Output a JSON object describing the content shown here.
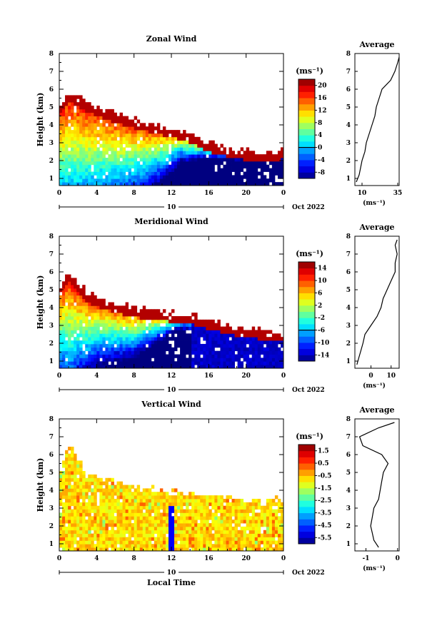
{
  "figure": {
    "xlabel": "Local Time",
    "x_ticks": [
      "0",
      "4",
      "8",
      "12",
      "16",
      "20",
      "0"
    ],
    "date_day": "10",
    "date_month": "Oct 2022",
    "y_ticks": [
      "1",
      "2",
      "3",
      "4",
      "5",
      "6",
      "7",
      "8"
    ],
    "ylabel": "Height (km)",
    "average_title": "Average",
    "unit_label": "(ms⁻¹)"
  },
  "chart_data": [
    {
      "type": "heatmap",
      "title": "Zonal Wind",
      "xlabel": "",
      "ylabel": "Height (km)",
      "xlim": [
        0,
        24
      ],
      "ylim": [
        0.6,
        8
      ],
      "colorbar": {
        "label": "(ms⁻¹)",
        "range": [
          -8,
          22
        ],
        "ticks": [
          "20",
          "16",
          "12",
          "8",
          "4",
          "0",
          "-4",
          "-8"
        ],
        "contour": 0
      },
      "top_height_km": [
        [
          0,
          5.0
        ],
        [
          1,
          5.8
        ],
        [
          3,
          5.2
        ],
        [
          6,
          4.6
        ],
        [
          9,
          4.2
        ],
        [
          12,
          3.8
        ],
        [
          14,
          3.5
        ],
        [
          16,
          3.0
        ],
        [
          19,
          2.6
        ],
        [
          22,
          2.4
        ],
        [
          24,
          2.6
        ]
      ],
      "core_height_km": [
        [
          0,
          1.7
        ],
        [
          4,
          1.9
        ],
        [
          8,
          2.0
        ],
        [
          11,
          2.4
        ],
        [
          13,
          2.8
        ],
        [
          16,
          2.6
        ],
        [
          20,
          2.5
        ],
        [
          24,
          2.5
        ]
      ],
      "profile": {
        "xlabel": "(ms⁻¹)",
        "x_ticks": [
          "10",
          "35"
        ],
        "xlim": [
          5,
          36
        ],
        "height_km": [
          0.8,
          1.2,
          1.6,
          2.0,
          2.5,
          3.0,
          3.5,
          4.0,
          4.5,
          5.0,
          5.5,
          6.0,
          6.5,
          7.0,
          7.5,
          7.8
        ],
        "values": [
          6,
          8,
          9,
          10,
          12,
          13,
          15,
          17,
          19,
          20,
          22,
          24,
          30,
          33,
          35,
          36
        ]
      }
    },
    {
      "type": "heatmap",
      "title": "Meridional Wind",
      "xlabel": "",
      "ylabel": "Height (km)",
      "xlim": [
        0,
        24
      ],
      "ylim": [
        0.6,
        8
      ],
      "colorbar": {
        "label": "(ms⁻¹)",
        "range": [
          -16,
          16
        ],
        "ticks": [
          "14",
          "10",
          "6",
          "2",
          "-2",
          "-6",
          "-10",
          "-14"
        ],
        "contour": 0
      },
      "top_height_km": [
        [
          0,
          5.2
        ],
        [
          1,
          6.0
        ],
        [
          3,
          4.8
        ],
        [
          6,
          4.2
        ],
        [
          9,
          3.9
        ],
        [
          12,
          3.7
        ],
        [
          14,
          3.6
        ],
        [
          16,
          3.3
        ],
        [
          19,
          2.9
        ],
        [
          22,
          2.7
        ],
        [
          24,
          2.6
        ]
      ],
      "core_height_km": [
        [
          0,
          2.4
        ],
        [
          4,
          2.6
        ],
        [
          8,
          2.6
        ],
        [
          11,
          3.0
        ],
        [
          13,
          3.3
        ],
        [
          16,
          3.0
        ],
        [
          20,
          2.8
        ],
        [
          24,
          2.7
        ]
      ],
      "profile": {
        "xlabel": "(ms⁻¹)",
        "x_ticks": [
          "0",
          "10"
        ],
        "xlim": [
          -8,
          14
        ],
        "height_km": [
          0.8,
          1.2,
          1.6,
          2.0,
          2.5,
          3.0,
          3.5,
          4.0,
          4.5,
          5.0,
          5.5,
          6.0,
          6.5,
          7.0,
          7.5,
          7.8
        ],
        "values": [
          -7,
          -6,
          -5,
          -4,
          -3,
          0,
          3,
          5,
          6,
          8,
          10,
          12,
          12,
          13,
          12,
          13
        ]
      }
    },
    {
      "type": "heatmap",
      "title": "Vertical Wind",
      "xlabel": "Local Time",
      "ylabel": "Height (km)",
      "xlim": [
        0,
        24
      ],
      "ylim": [
        0.6,
        8
      ],
      "colorbar": {
        "label": "(ms⁻¹)",
        "range": [
          -6,
          2
        ],
        "ticks": [
          "1.5",
          "0.5",
          "-0.5",
          "-1.5",
          "-2.5",
          "-3.5",
          "-4.5",
          "-5.5"
        ]
      },
      "top_height_km": [
        [
          0,
          5.0
        ],
        [
          1,
          6.6
        ],
        [
          3,
          4.8
        ],
        [
          6,
          4.4
        ],
        [
          9,
          4.2
        ],
        [
          12,
          3.9
        ],
        [
          14,
          3.8
        ],
        [
          16,
          3.8
        ],
        [
          19,
          3.6
        ],
        [
          22,
          3.3
        ],
        [
          24,
          3.6
        ]
      ],
      "core_height_km": [
        [
          0,
          1.5
        ],
        [
          8,
          1.5
        ],
        [
          16,
          1.5
        ],
        [
          24,
          1.5
        ]
      ],
      "profile": {
        "xlabel": "(ms⁻¹)",
        "x_ticks": [
          "-1",
          "0"
        ],
        "xlim": [
          -1.35,
          0.05
        ],
        "height_km": [
          0.8,
          1.2,
          1.6,
          2.0,
          2.5,
          3.0,
          3.5,
          4.0,
          4.5,
          5.0,
          5.5,
          6.0,
          6.5,
          7.0,
          7.5,
          7.8
        ],
        "values": [
          -0.6,
          -0.75,
          -0.8,
          -0.85,
          -0.8,
          -0.75,
          -0.6,
          -0.55,
          -0.5,
          -0.45,
          -0.3,
          -0.5,
          -1.1,
          -1.2,
          -0.6,
          -0.1
        ]
      }
    }
  ]
}
